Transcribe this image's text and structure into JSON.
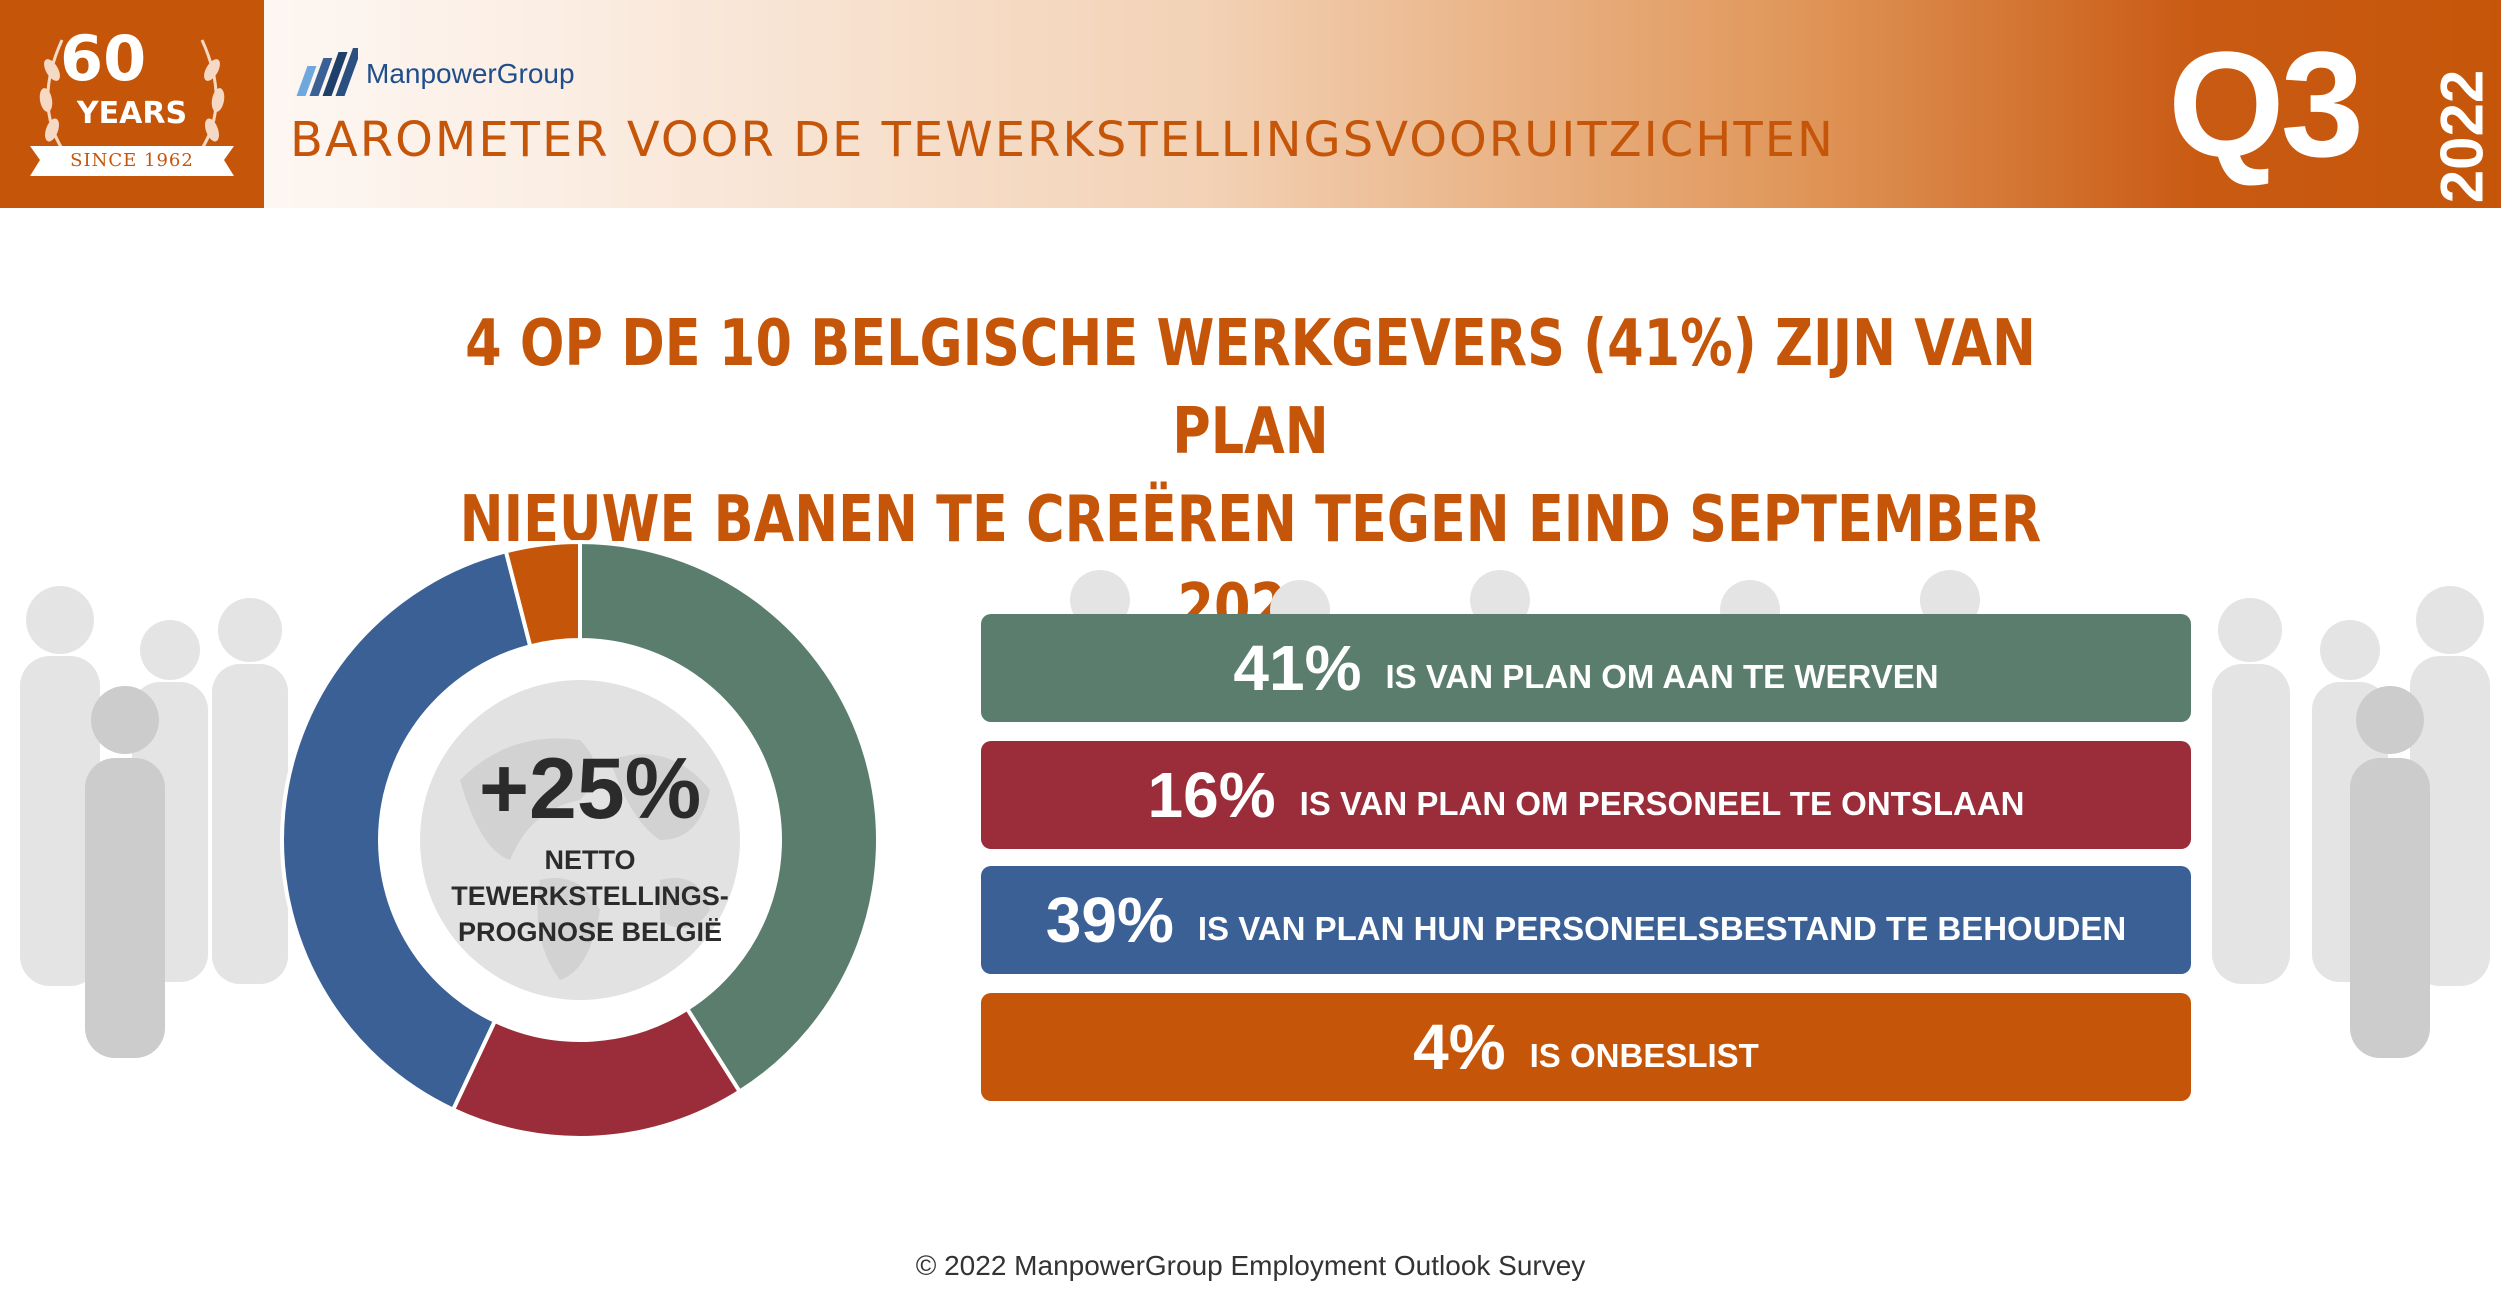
{
  "header": {
    "badge_sixty": "60",
    "badge_years": "YEARS",
    "badge_since": "SINCE 1962",
    "brand": "ManpowerGroup",
    "title": "BAROMETER VOOR DE TEWERKSTELLINGSVOORUITZICHTEN",
    "quarter": "Q3",
    "year": "2022",
    "brand_color": "#c55609"
  },
  "headline": {
    "line1": "4 OP DE 10 BELGISCHE WERKGEVERS (41%) ZIJN VAN PLAN",
    "line2": "NIEUWE BANEN TE CREËREN TEGEN EIND SEPTEMBER 2022"
  },
  "donut_center": {
    "value": "+25%",
    "label_line1": "NETTO",
    "label_line2": "TEWERKSTELLINGS-",
    "label_line3": "PROGNOSE BELGIË"
  },
  "chart_data": {
    "type": "pie",
    "donut": true,
    "slices": [
      {
        "value": 41,
        "color": "#5a7d6e"
      },
      {
        "value": 16,
        "color": "#9b2d3a"
      },
      {
        "value": 39,
        "color": "#3a6096"
      },
      {
        "value": 4,
        "color": "#c55609"
      }
    ]
  },
  "bars": [
    {
      "pct": "41%",
      "text": "IS VAN PLAN OM AAN TE WERVEN",
      "color": "#5a7d6e"
    },
    {
      "pct": "16%",
      "text": "IS VAN PLAN OM PERSONEEL TE ONTSLAAN",
      "color": "#9b2d3a"
    },
    {
      "pct": "39%",
      "text": "IS VAN PLAN HUN PERSONEELSBESTAND TE BEHOUDEN",
      "color": "#3a6096"
    },
    {
      "pct": "4%",
      "text": "IS ONBESLIST",
      "color": "#c55609"
    }
  ],
  "footer": "© 2022 ManpowerGroup Employment Outlook Survey"
}
